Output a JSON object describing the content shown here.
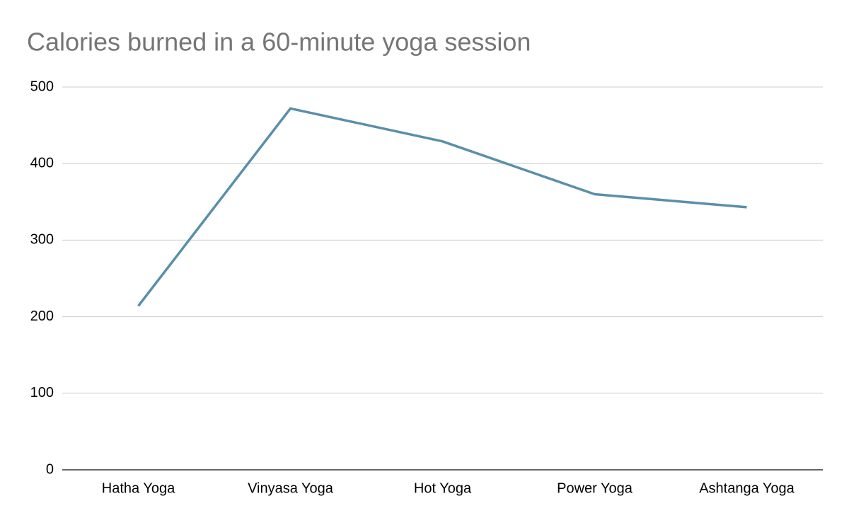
{
  "chart_data": {
    "type": "line",
    "title": "Calories burned in a 60-minute yoga session",
    "categories": [
      "Hatha Yoga",
      "Vinyasa Yoga",
      "Hot Yoga",
      "Power Yoga",
      "Ashtanga Yoga"
    ],
    "values": [
      214,
      472,
      429,
      360,
      343
    ],
    "color": "#5a8fa9",
    "ylim": [
      0,
      500
    ],
    "yticks": [
      0,
      100,
      200,
      300,
      400,
      500
    ],
    "grid": true
  }
}
